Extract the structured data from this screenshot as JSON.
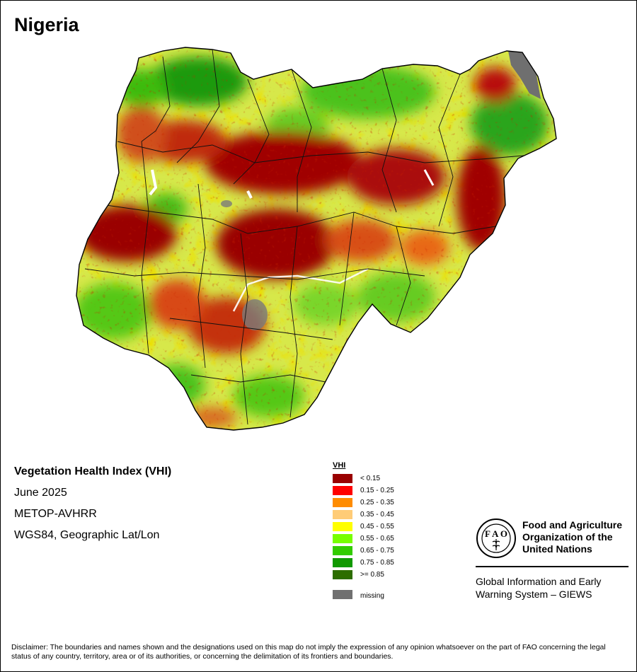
{
  "map": {
    "title": "Nigeria",
    "info": {
      "index_name": "Vegetation Health Index (VHI)",
      "period": "June 2025",
      "sensor": "METOP-AVHRR",
      "projection": "WGS84, Geographic Lat/Lon"
    }
  },
  "legend": {
    "title": "VHI",
    "classes": [
      {
        "label": "< 0.15",
        "color": "#990000"
      },
      {
        "label": "0.15 - 0.25",
        "color": "#ff0000"
      },
      {
        "label": "0.25 - 0.35",
        "color": "#ff8c00"
      },
      {
        "label": "0.35 - 0.45",
        "color": "#ffcc77"
      },
      {
        "label": "0.45 - 0.55",
        "color": "#ffff00"
      },
      {
        "label": "0.55 - 0.65",
        "color": "#77ff00"
      },
      {
        "label": "0.65 - 0.75",
        "color": "#33cc00"
      },
      {
        "label": "0.75 - 0.85",
        "color": "#119900"
      },
      {
        "label": ">= 0.85",
        "color": "#2d6e00"
      }
    ],
    "missing": {
      "label": "missing",
      "color": "#707070"
    }
  },
  "organization": {
    "logo_icon": "fao-logo-icon",
    "name_lines": [
      "Food and Agriculture",
      "Organization of the",
      "United Nations"
    ],
    "system_lines": [
      "Global Information and Early",
      "Warning System – GIEWS"
    ]
  },
  "disclaimer": "Disclaimer: The boundaries and names shown and the designations used on this map do not imply the expression of any opinion whatsoever on the part of FAO concerning the legal status of any country, territory, area or of its authorities, or concerning the delimitation of its frontiers and boundaries."
}
